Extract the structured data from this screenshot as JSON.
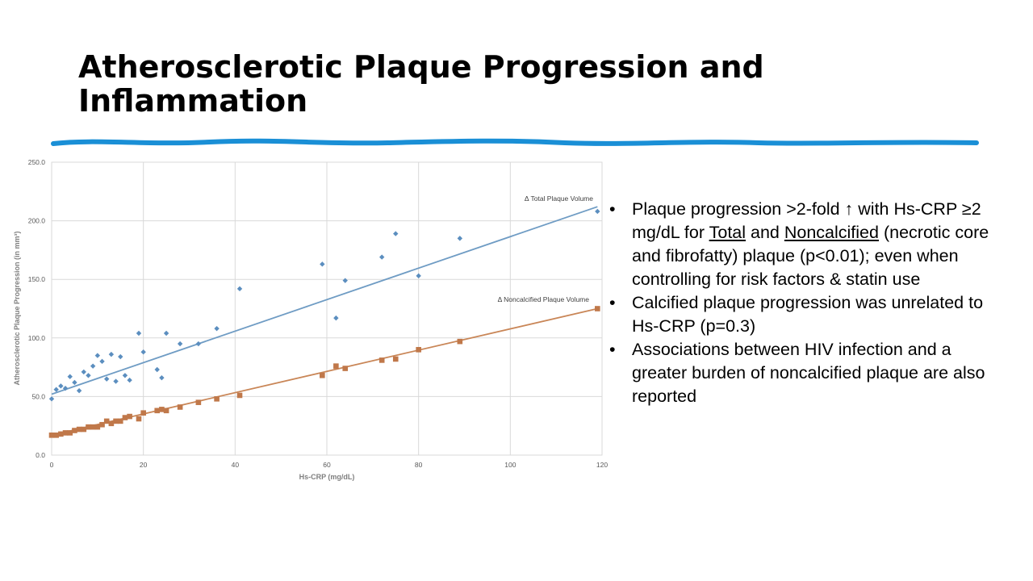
{
  "slide": {
    "title_line1": "Atherosclerotic Plaque Progression and",
    "title_line2": "Inflammation",
    "accent_color": "#1a8fd6"
  },
  "bullets": {
    "b1_a": "Plaque progression >2-fold ↑ with Hs-CRP ≥2 mg/dL for ",
    "b1_total": "Total",
    "b1_and": " and ",
    "b1_noncalcified": "Noncalcified",
    "b1_b": " (necrotic core and fibrofatty) plaque (p<0.01); even when controlling for risk factors & statin use",
    "b2": "Calcified plaque progression was unrelated to Hs-CRP (p=0.3)",
    "b3": "Associations between HIV infection and a greater burden of noncalcified plaque are also reported"
  },
  "chart_data": {
    "type": "scatter",
    "xlabel": "Hs-CRP (mg/dL)",
    "ylabel": "Atherosclerotic Plaque Progression (in mm³)",
    "xlim": [
      0,
      120
    ],
    "ylim": [
      0,
      250
    ],
    "x_ticks": [
      0,
      20,
      40,
      60,
      80,
      100,
      120
    ],
    "y_ticks": [
      0,
      50,
      100,
      150,
      200,
      250
    ],
    "y_tick_labels": [
      "0.0",
      "50.0",
      "100.0",
      "150.0",
      "200.0",
      "250.0"
    ],
    "grid": true,
    "series": [
      {
        "name": "Δ Total Plaque Volume",
        "marker": "diamond",
        "color": "#5b8ebf",
        "trend_color": "#6f9cc4",
        "trendline": [
          [
            0,
            52
          ],
          [
            119,
            212
          ]
        ],
        "points": [
          [
            0,
            48
          ],
          [
            1,
            56
          ],
          [
            2,
            59
          ],
          [
            3,
            57
          ],
          [
            4,
            67
          ],
          [
            5,
            62
          ],
          [
            6,
            55
          ],
          [
            7,
            71
          ],
          [
            8,
            68
          ],
          [
            9,
            76
          ],
          [
            10,
            85
          ],
          [
            11,
            80
          ],
          [
            12,
            65
          ],
          [
            13,
            86
          ],
          [
            14,
            63
          ],
          [
            15,
            84
          ],
          [
            16,
            68
          ],
          [
            17,
            64
          ],
          [
            19,
            104
          ],
          [
            20,
            88
          ],
          [
            23,
            73
          ],
          [
            24,
            66
          ],
          [
            25,
            104
          ],
          [
            28,
            95
          ],
          [
            32,
            95
          ],
          [
            36,
            108
          ],
          [
            41,
            142
          ],
          [
            59,
            163
          ],
          [
            62,
            117
          ],
          [
            64,
            149
          ],
          [
            72,
            169
          ],
          [
            75,
            189
          ],
          [
            80,
            153
          ],
          [
            89,
            185
          ],
          [
            119,
            208
          ]
        ]
      },
      {
        "name": "Δ Noncalcified Plaque Volume",
        "marker": "square",
        "color": "#c0784a",
        "trend_color": "#c98657",
        "trendline": [
          [
            0,
            17
          ],
          [
            119,
            125
          ]
        ],
        "points": [
          [
            0,
            17
          ],
          [
            1,
            17
          ],
          [
            2,
            18
          ],
          [
            3,
            19
          ],
          [
            4,
            19
          ],
          [
            5,
            21
          ],
          [
            6,
            22
          ],
          [
            7,
            22
          ],
          [
            8,
            24
          ],
          [
            9,
            24
          ],
          [
            10,
            24
          ],
          [
            11,
            26
          ],
          [
            12,
            29
          ],
          [
            13,
            27
          ],
          [
            14,
            29
          ],
          [
            15,
            29
          ],
          [
            16,
            32
          ],
          [
            17,
            33
          ],
          [
            19,
            31
          ],
          [
            20,
            36
          ],
          [
            23,
            38
          ],
          [
            24,
            39
          ],
          [
            25,
            38
          ],
          [
            28,
            41
          ],
          [
            32,
            45
          ],
          [
            36,
            48
          ],
          [
            41,
            51
          ],
          [
            59,
            68
          ],
          [
            62,
            76
          ],
          [
            64,
            74
          ],
          [
            72,
            81
          ],
          [
            75,
            82
          ],
          [
            80,
            90
          ],
          [
            89,
            97
          ],
          [
            119,
            125
          ]
        ]
      }
    ]
  }
}
